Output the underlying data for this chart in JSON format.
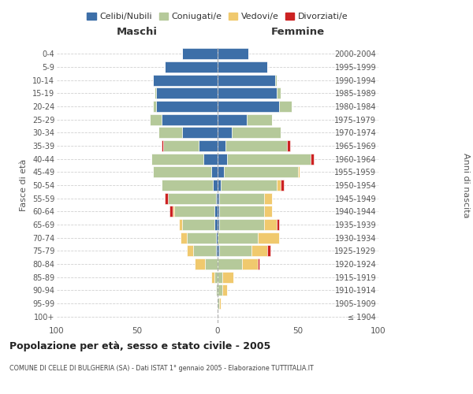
{
  "age_groups": [
    "100+",
    "95-99",
    "90-94",
    "85-89",
    "80-84",
    "75-79",
    "70-74",
    "65-69",
    "60-64",
    "55-59",
    "50-54",
    "45-49",
    "40-44",
    "35-39",
    "30-34",
    "25-29",
    "20-24",
    "15-19",
    "10-14",
    "5-9",
    "0-4"
  ],
  "birth_years": [
    "≤ 1904",
    "1905-1909",
    "1910-1914",
    "1915-1919",
    "1920-1924",
    "1925-1929",
    "1930-1934",
    "1935-1939",
    "1940-1944",
    "1945-1949",
    "1950-1954",
    "1955-1959",
    "1960-1964",
    "1965-1969",
    "1970-1974",
    "1975-1979",
    "1980-1984",
    "1985-1989",
    "1990-1994",
    "1995-1999",
    "2000-2004"
  ],
  "colors": {
    "celibi": "#3d6fa8",
    "coniugati": "#b5c99a",
    "vedovi": "#f0c96e",
    "divorziati": "#cc2222"
  },
  "maschi": {
    "celibi": [
      0,
      0,
      0,
      0,
      0,
      1,
      1,
      2,
      2,
      1,
      3,
      4,
      9,
      12,
      22,
      35,
      38,
      38,
      40,
      33,
      22
    ],
    "coniugati": [
      0,
      0,
      1,
      2,
      8,
      14,
      18,
      20,
      25,
      30,
      32,
      36,
      32,
      22,
      15,
      7,
      2,
      1,
      0,
      0,
      0
    ],
    "vedovi": [
      0,
      0,
      0,
      2,
      6,
      4,
      4,
      2,
      1,
      0,
      0,
      0,
      0,
      0,
      0,
      0,
      0,
      0,
      0,
      0,
      0
    ],
    "divorziati": [
      0,
      0,
      0,
      0,
      0,
      0,
      0,
      0,
      2,
      2,
      0,
      0,
      0,
      1,
      0,
      0,
      0,
      0,
      0,
      0,
      0
    ]
  },
  "femmine": {
    "celibi": [
      0,
      0,
      0,
      0,
      0,
      1,
      0,
      1,
      1,
      1,
      2,
      4,
      6,
      5,
      9,
      18,
      38,
      37,
      36,
      31,
      19
    ],
    "coniugati": [
      0,
      1,
      3,
      3,
      15,
      20,
      25,
      28,
      28,
      28,
      35,
      46,
      52,
      38,
      30,
      16,
      8,
      2,
      1,
      0,
      0
    ],
    "vedovi": [
      0,
      1,
      3,
      7,
      10,
      10,
      13,
      8,
      5,
      5,
      2,
      1,
      0,
      0,
      0,
      0,
      0,
      0,
      0,
      0,
      0
    ],
    "divorziati": [
      0,
      0,
      0,
      0,
      1,
      2,
      0,
      1,
      0,
      0,
      2,
      0,
      2,
      2,
      0,
      0,
      0,
      0,
      0,
      0,
      0
    ]
  },
  "title": "Popolazione per età, sesso e stato civile - 2005",
  "subtitle": "COMUNE DI CELLE DI BULGHERIA (SA) - Dati ISTAT 1° gennaio 2005 - Elaborazione TUTTITALIA.IT",
  "xlabel_left": "Maschi",
  "xlabel_right": "Femmine",
  "ylabel_left": "Fasce di età",
  "ylabel_right": "Anni di nascita",
  "xlim": 100,
  "legend_labels": [
    "Celibi/Nubili",
    "Coniugati/e",
    "Vedovi/e",
    "Divorziati/e"
  ],
  "background_color": "#ffffff",
  "bar_height": 0.85
}
